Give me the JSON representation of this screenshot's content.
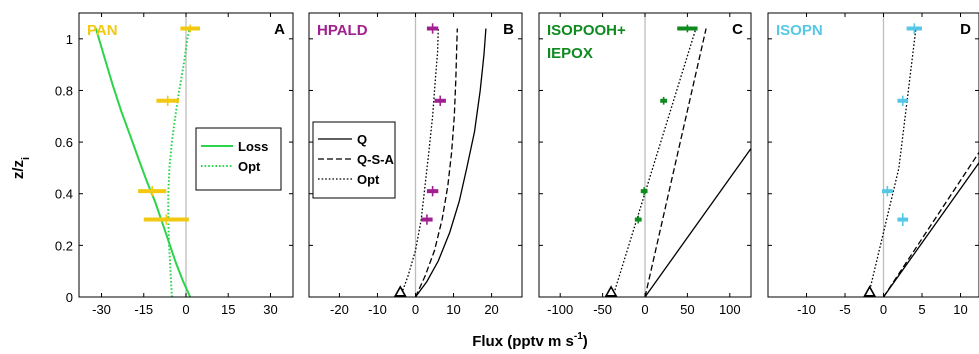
{
  "figure": {
    "y_axis_label": "z/z",
    "y_axis_label_sub": "i",
    "x_axis_label": "Flux (pptv m s",
    "x_axis_label_sup": "-1",
    "x_axis_label_close": ")"
  },
  "chart_data": [
    {
      "type": "line",
      "panel": "A",
      "species_lines": [
        "PAN"
      ],
      "species_color": "#f2c811",
      "xlim": [
        -38,
        38
      ],
      "ylim": [
        0,
        1.1
      ],
      "xticks": [
        -30,
        -15,
        0,
        15,
        30
      ],
      "xtick_labels": [
        "-30",
        "-15",
        "0",
        "15",
        "30"
      ],
      "yticks": [
        0,
        0.2,
        0.4,
        0.6,
        0.8,
        1
      ],
      "ytick_labels": [
        "0",
        "0.2",
        "0.4",
        "0.6",
        "0.8",
        "1"
      ],
      "legend": {
        "placement": "center-right",
        "entries": [
          "Loss",
          "Opt"
        ]
      },
      "series": [
        {
          "name": "Loss",
          "color": "#2bd44a",
          "style": "solid",
          "x": [
            -32,
            -29,
            -26,
            -23,
            -20,
            -17,
            -14,
            -11,
            -8.5,
            -6,
            -3.5,
            -1,
            1.5
          ],
          "y": [
            1.04,
            0.93,
            0.82,
            0.72,
            0.63,
            0.54,
            0.45,
            0.37,
            0.29,
            0.21,
            0.13,
            0.06,
            0.0
          ]
        },
        {
          "name": "Opt",
          "color": "#2bd44a",
          "style": "dotted",
          "x": [
            -5,
            -5.5,
            -6,
            -6.3,
            -6.3,
            -5.9,
            -5,
            -3.8,
            -2.4,
            -0.8,
            0.5,
            1.3
          ],
          "y": [
            0.0,
            0.1,
            0.2,
            0.3,
            0.4,
            0.5,
            0.6,
            0.7,
            0.8,
            0.9,
            1.0,
            1.04
          ]
        }
      ],
      "observations": [
        {
          "x": 1.5,
          "xerr": 3.5,
          "y": 1.04,
          "yerr": 0.015
        },
        {
          "x": -6.5,
          "xerr": 4.0,
          "y": 0.76,
          "yerr": 0.02
        },
        {
          "x": -12,
          "xerr": 5.0,
          "y": 0.41,
          "yerr": 0.02
        },
        {
          "x": -7,
          "xerr": 8.0,
          "y": 0.3,
          "yerr": 0.02
        }
      ],
      "triangle": null
    },
    {
      "type": "line",
      "panel": "B",
      "species_lines": [
        "HPALD"
      ],
      "species_color": "#a0208f",
      "xlim": [
        -28,
        28
      ],
      "ylim": [
        0,
        1.1
      ],
      "xticks": [
        -20,
        -10,
        0,
        10,
        20
      ],
      "xtick_labels": [
        "-20",
        "-10",
        "0",
        "10",
        "20"
      ],
      "legend": {
        "placement": "left",
        "entries": [
          "Q",
          "Q-S-A",
          "Opt"
        ]
      },
      "series": [
        {
          "name": "Q",
          "color": "#000000",
          "style": "solid",
          "x": [
            0,
            3,
            6,
            9,
            11.5,
            13.5,
            15.5,
            17,
            18,
            18.5
          ],
          "y": [
            0.0,
            0.06,
            0.14,
            0.25,
            0.37,
            0.5,
            0.64,
            0.8,
            0.94,
            1.04
          ]
        },
        {
          "name": "Q-S-A",
          "color": "#000000",
          "style": "dashed",
          "x": [
            0,
            2.5,
            5,
            7,
            8.5,
            9.5,
            10.2,
            10.6,
            10.8,
            11
          ],
          "y": [
            0.0,
            0.08,
            0.18,
            0.3,
            0.43,
            0.56,
            0.7,
            0.84,
            0.95,
            1.04
          ]
        },
        {
          "name": "Opt",
          "color": "#000000",
          "style": "dotted",
          "x": [
            -4,
            -2,
            0,
            1.5,
            2.5,
            3.5,
            4.5,
            5.2,
            5.8,
            6
          ],
          "y": [
            0.0,
            0.08,
            0.18,
            0.3,
            0.43,
            0.56,
            0.7,
            0.84,
            0.95,
            1.04
          ]
        }
      ],
      "observations": [
        {
          "x": 4.5,
          "xerr": 1.5,
          "y": 1.04,
          "yerr": 0.02
        },
        {
          "x": 6.5,
          "xerr": 1.5,
          "y": 0.76,
          "yerr": 0.02
        },
        {
          "x": 4.5,
          "xerr": 1.5,
          "y": 0.41,
          "yerr": 0.02
        },
        {
          "x": 3.0,
          "xerr": 1.5,
          "y": 0.3,
          "yerr": 0.02
        }
      ],
      "triangle": {
        "x": -4,
        "y": 0.02
      }
    },
    {
      "type": "line",
      "panel": "C",
      "species_lines": [
        "ISOPOOH+",
        "IEPOX"
      ],
      "species_color": "#0f8a1e",
      "xlim": [
        -125,
        125
      ],
      "ylim": [
        0,
        1.1
      ],
      "xticks": [
        -100,
        -50,
        0,
        50,
        100
      ],
      "xtick_labels": [
        "-100",
        "-50",
        "0",
        "50",
        "100"
      ],
      "series": [
        {
          "name": "Q",
          "color": "#000000",
          "style": "solid",
          "x": [
            0,
            125
          ],
          "y": [
            0.0,
            0.575
          ]
        },
        {
          "name": "Q-S-A",
          "color": "#000000",
          "style": "dashed",
          "x": [
            0,
            72
          ],
          "y": [
            0.0,
            1.04
          ]
        },
        {
          "name": "Opt",
          "color": "#000000",
          "style": "dotted",
          "x": [
            -38,
            60
          ],
          "y": [
            0.0,
            1.04
          ]
        }
      ],
      "observations": [
        {
          "x": 50,
          "xerr": 12,
          "y": 1.04,
          "yerr": 0.015
        },
        {
          "x": 22,
          "xerr": 4,
          "y": 0.76,
          "yerr": 0.015
        },
        {
          "x": -1,
          "xerr": 4,
          "y": 0.41,
          "yerr": 0.015
        },
        {
          "x": -8,
          "xerr": 4,
          "y": 0.3,
          "yerr": 0.015
        }
      ],
      "triangle": {
        "x": -40,
        "y": 0.02
      }
    },
    {
      "type": "line",
      "panel": "D",
      "species_lines": [
        "ISOPN"
      ],
      "species_color": "#56c8e6",
      "xlim": [
        -15,
        12.4
      ],
      "ylim": [
        0,
        1.1
      ],
      "xticks": [
        -10,
        -5,
        0,
        5,
        10
      ],
      "xtick_labels": [
        "-10",
        "-5",
        "0",
        "5",
        "10"
      ],
      "series": [
        {
          "name": "Q",
          "color": "#000000",
          "style": "solid",
          "x": [
            0,
            12.4
          ],
          "y": [
            0.0,
            0.52
          ]
        },
        {
          "name": "Q-S-A",
          "color": "#000000",
          "style": "dashed",
          "x": [
            0,
            12.4
          ],
          "y": [
            0.0,
            0.56
          ]
        },
        {
          "name": "Opt",
          "color": "#000000",
          "style": "dotted",
          "x": [
            -2,
            2,
            4.2
          ],
          "y": [
            0.0,
            0.5,
            1.04
          ]
        }
      ],
      "observations": [
        {
          "x": 4.0,
          "xerr": 1.0,
          "y": 1.04,
          "yerr": 0.02
        },
        {
          "x": 2.5,
          "xerr": 0.7,
          "y": 0.76,
          "yerr": 0.02
        },
        {
          "x": 0.5,
          "xerr": 0.7,
          "y": 0.41,
          "yerr": 0.02
        },
        {
          "x": 2.5,
          "xerr": 0.7,
          "y": 0.3,
          "yerr": 0.025
        }
      ],
      "triangle": {
        "x": -1.8,
        "y": 0.02
      }
    }
  ]
}
